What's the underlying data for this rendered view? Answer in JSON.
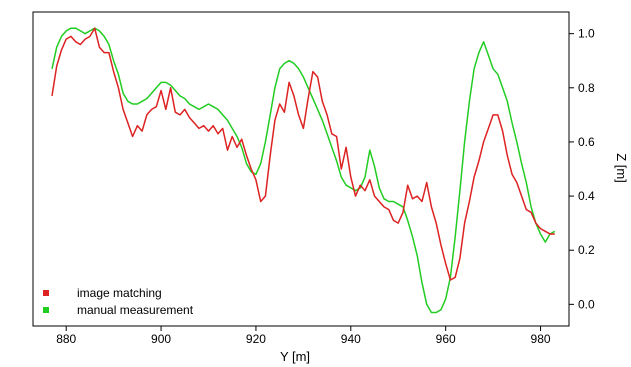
{
  "chart_data": {
    "type": "line",
    "title": "",
    "xlabel": "Y [m]",
    "ylabel": "Z [m]",
    "xlim": [
      873,
      986
    ],
    "ylim": [
      -0.08,
      1.08
    ],
    "x_ticks": [
      880,
      900,
      920,
      940,
      960,
      980
    ],
    "y_ticks": [
      0.0,
      0.2,
      0.4,
      0.6,
      0.8,
      1.0
    ],
    "x_tick_labels": [
      "880",
      "900",
      "920",
      "940",
      "960",
      "980"
    ],
    "y_tick_labels": [
      "0.0",
      "0.2",
      "0.4",
      "0.6",
      "0.8",
      "1.0"
    ],
    "y_axis_side": "right",
    "grid": false,
    "legend_position": "bottom-left",
    "series": [
      {
        "name": "image matching",
        "color": "#dd2222",
        "points": [
          [
            877,
            0.77
          ],
          [
            878,
            0.88
          ],
          [
            879,
            0.94
          ],
          [
            880,
            0.98
          ],
          [
            881,
            0.99
          ],
          [
            882,
            0.97
          ],
          [
            883,
            0.96
          ],
          [
            884,
            0.98
          ],
          [
            885,
            0.99
          ],
          [
            886,
            1.02
          ],
          [
            887,
            0.95
          ],
          [
            888,
            0.93
          ],
          [
            889,
            0.93
          ],
          [
            890,
            0.86
          ],
          [
            891,
            0.8
          ],
          [
            892,
            0.72
          ],
          [
            893,
            0.67
          ],
          [
            894,
            0.62
          ],
          [
            895,
            0.66
          ],
          [
            896,
            0.64
          ],
          [
            897,
            0.7
          ],
          [
            898,
            0.72
          ],
          [
            899,
            0.73
          ],
          [
            900,
            0.79
          ],
          [
            901,
            0.72
          ],
          [
            902,
            0.8
          ],
          [
            903,
            0.71
          ],
          [
            904,
            0.7
          ],
          [
            905,
            0.72
          ],
          [
            906,
            0.69
          ],
          [
            907,
            0.67
          ],
          [
            908,
            0.65
          ],
          [
            909,
            0.66
          ],
          [
            910,
            0.64
          ],
          [
            911,
            0.66
          ],
          [
            912,
            0.63
          ],
          [
            913,
            0.65
          ],
          [
            914,
            0.57
          ],
          [
            915,
            0.62
          ],
          [
            916,
            0.58
          ],
          [
            917,
            0.61
          ],
          [
            918,
            0.55
          ],
          [
            919,
            0.5
          ],
          [
            920,
            0.46
          ],
          [
            921,
            0.38
          ],
          [
            922,
            0.4
          ],
          [
            923,
            0.55
          ],
          [
            924,
            0.68
          ],
          [
            925,
            0.74
          ],
          [
            926,
            0.71
          ],
          [
            927,
            0.82
          ],
          [
            928,
            0.77
          ],
          [
            929,
            0.7
          ],
          [
            930,
            0.65
          ],
          [
            931,
            0.76
          ],
          [
            932,
            0.86
          ],
          [
            933,
            0.84
          ],
          [
            934,
            0.75
          ],
          [
            935,
            0.7
          ],
          [
            936,
            0.63
          ],
          [
            937,
            0.62
          ],
          [
            938,
            0.5
          ],
          [
            939,
            0.58
          ],
          [
            940,
            0.47
          ],
          [
            941,
            0.4
          ],
          [
            942,
            0.44
          ],
          [
            943,
            0.42
          ],
          [
            944,
            0.46
          ],
          [
            945,
            0.4
          ],
          [
            946,
            0.38
          ],
          [
            947,
            0.36
          ],
          [
            948,
            0.35
          ],
          [
            949,
            0.31
          ],
          [
            950,
            0.3
          ],
          [
            951,
            0.34
          ],
          [
            952,
            0.44
          ],
          [
            953,
            0.39
          ],
          [
            954,
            0.4
          ],
          [
            955,
            0.38
          ],
          [
            956,
            0.45
          ],
          [
            957,
            0.36
          ],
          [
            958,
            0.3
          ],
          [
            959,
            0.22
          ],
          [
            960,
            0.15
          ],
          [
            961,
            0.09
          ],
          [
            962,
            0.1
          ],
          [
            963,
            0.17
          ],
          [
            964,
            0.3
          ],
          [
            965,
            0.38
          ],
          [
            966,
            0.47
          ],
          [
            967,
            0.53
          ],
          [
            968,
            0.6
          ],
          [
            969,
            0.65
          ],
          [
            970,
            0.7
          ],
          [
            971,
            0.7
          ],
          [
            972,
            0.64
          ],
          [
            973,
            0.55
          ],
          [
            974,
            0.48
          ],
          [
            975,
            0.45
          ],
          [
            976,
            0.4
          ],
          [
            977,
            0.35
          ],
          [
            978,
            0.34
          ],
          [
            979,
            0.3
          ],
          [
            980,
            0.28
          ],
          [
            981,
            0.27
          ],
          [
            982,
            0.26
          ],
          [
            983,
            0.26
          ]
        ]
      },
      {
        "name": "manual measurement",
        "color": "#22cc22",
        "points": [
          [
            877,
            0.87
          ],
          [
            878,
            0.95
          ],
          [
            879,
            0.99
          ],
          [
            880,
            1.01
          ],
          [
            881,
            1.02
          ],
          [
            882,
            1.02
          ],
          [
            883,
            1.01
          ],
          [
            884,
            1.0
          ],
          [
            885,
            1.01
          ],
          [
            886,
            1.02
          ],
          [
            887,
            1.01
          ],
          [
            888,
            0.99
          ],
          [
            889,
            0.96
          ],
          [
            890,
            0.9
          ],
          [
            891,
            0.85
          ],
          [
            892,
            0.78
          ],
          [
            893,
            0.75
          ],
          [
            894,
            0.74
          ],
          [
            895,
            0.74
          ],
          [
            896,
            0.75
          ],
          [
            897,
            0.76
          ],
          [
            898,
            0.78
          ],
          [
            899,
            0.8
          ],
          [
            900,
            0.82
          ],
          [
            901,
            0.82
          ],
          [
            902,
            0.81
          ],
          [
            903,
            0.79
          ],
          [
            904,
            0.77
          ],
          [
            905,
            0.76
          ],
          [
            906,
            0.74
          ],
          [
            907,
            0.73
          ],
          [
            908,
            0.72
          ],
          [
            909,
            0.73
          ],
          [
            910,
            0.74
          ],
          [
            911,
            0.73
          ],
          [
            912,
            0.72
          ],
          [
            913,
            0.7
          ],
          [
            914,
            0.68
          ],
          [
            915,
            0.65
          ],
          [
            916,
            0.62
          ],
          [
            917,
            0.58
          ],
          [
            918,
            0.52
          ],
          [
            919,
            0.49
          ],
          [
            920,
            0.48
          ],
          [
            921,
            0.52
          ],
          [
            922,
            0.6
          ],
          [
            923,
            0.7
          ],
          [
            924,
            0.8
          ],
          [
            925,
            0.87
          ],
          [
            926,
            0.89
          ],
          [
            927,
            0.9
          ],
          [
            928,
            0.89
          ],
          [
            929,
            0.87
          ],
          [
            930,
            0.84
          ],
          [
            931,
            0.8
          ],
          [
            932,
            0.76
          ],
          [
            933,
            0.72
          ],
          [
            934,
            0.68
          ],
          [
            935,
            0.63
          ],
          [
            936,
            0.58
          ],
          [
            937,
            0.53
          ],
          [
            938,
            0.47
          ],
          [
            939,
            0.44
          ],
          [
            940,
            0.43
          ],
          [
            941,
            0.42
          ],
          [
            942,
            0.43
          ],
          [
            943,
            0.47
          ],
          [
            944,
            0.57
          ],
          [
            945,
            0.51
          ],
          [
            946,
            0.43
          ],
          [
            947,
            0.39
          ],
          [
            948,
            0.38
          ],
          [
            949,
            0.38
          ],
          [
            950,
            0.37
          ],
          [
            951,
            0.36
          ],
          [
            952,
            0.31
          ],
          [
            953,
            0.25
          ],
          [
            954,
            0.18
          ],
          [
            955,
            0.08
          ],
          [
            956,
            0.0
          ],
          [
            957,
            -0.03
          ],
          [
            958,
            -0.03
          ],
          [
            959,
            -0.02
          ],
          [
            960,
            0.02
          ],
          [
            961,
            0.1
          ],
          [
            962,
            0.25
          ],
          [
            963,
            0.42
          ],
          [
            964,
            0.6
          ],
          [
            965,
            0.75
          ],
          [
            966,
            0.87
          ],
          [
            967,
            0.93
          ],
          [
            968,
            0.97
          ],
          [
            969,
            0.92
          ],
          [
            970,
            0.87
          ],
          [
            971,
            0.85
          ],
          [
            972,
            0.8
          ],
          [
            973,
            0.75
          ],
          [
            974,
            0.67
          ],
          [
            975,
            0.6
          ],
          [
            976,
            0.52
          ],
          [
            977,
            0.45
          ],
          [
            978,
            0.36
          ],
          [
            979,
            0.3
          ],
          [
            980,
            0.26
          ],
          [
            981,
            0.23
          ],
          [
            982,
            0.26
          ],
          [
            983,
            0.27
          ]
        ]
      }
    ]
  }
}
